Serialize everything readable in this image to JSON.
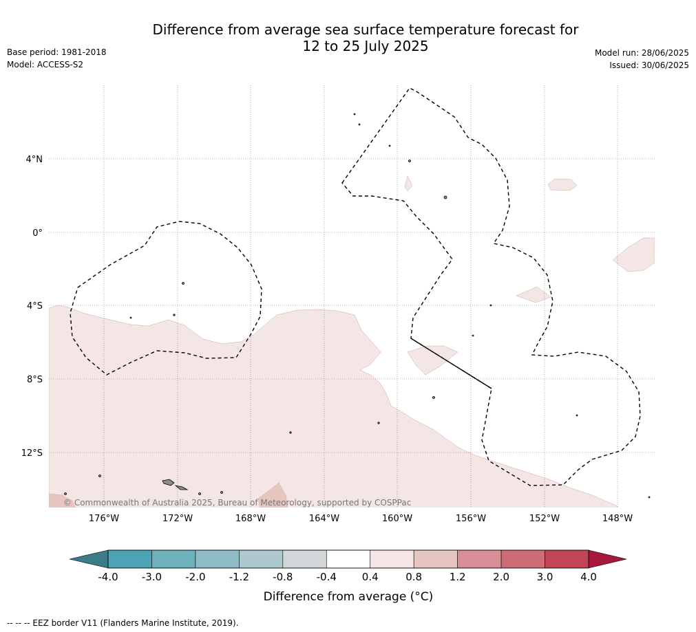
{
  "header": {
    "title_line1": "Difference from average sea surface temperature forecast for",
    "title_line2": "12 to 25 July 2025",
    "base_period": "Base period: 1981-2018",
    "model": "Model: ACCESS-S2",
    "model_run": "Model run: 28/06/2025",
    "issued": "Issued: 30/06/2025"
  },
  "map": {
    "lat_labels": [
      "4°N",
      "0°",
      "4°S",
      "8°S",
      "12°S"
    ],
    "lon_labels": [
      "176°W",
      "172°W",
      "168°W",
      "164°W",
      "160°W",
      "156°W",
      "152°W",
      "148°W"
    ],
    "copyright": "© Commonwealth of Australia 2025, Bureau of Meteorology, supported by COSPPac",
    "fill_colors": {
      "anomaly_04_08": "#f4e6e4",
      "anomaly_08_12": "#e8c6c0",
      "land": "#8a8a8a"
    }
  },
  "colorbar": {
    "ticks": [
      "-4.0",
      "-3.0",
      "-2.0",
      "-1.2",
      "-0.8",
      "-0.4",
      "0.4",
      "0.8",
      "1.2",
      "2.0",
      "3.0",
      "4.0"
    ],
    "colors": [
      "#4ba3b3",
      "#6fb0bd",
      "#8fbbc6",
      "#adc9cf",
      "#d1d6d8",
      "#ffffff",
      "#f4e6e4",
      "#e8c6c0",
      "#d78e95",
      "#cd6b76",
      "#c14757"
    ],
    "under_color": "#3a7c87",
    "over_color": "#a8183a",
    "label": "Difference from average (°C)"
  },
  "footer": {
    "eez_note": "-- -- -- EEZ border V11 (Flanders Marine Institute, 2019)."
  }
}
